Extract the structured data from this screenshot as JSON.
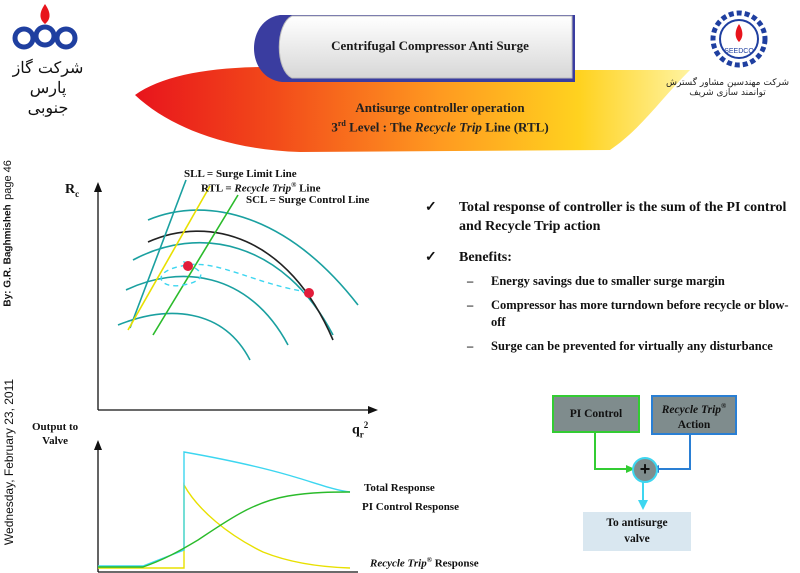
{
  "header": {
    "title": "Centrifugal Compressor Anti Surge",
    "subtitle_line1": "Antisurge controller operation",
    "subtitle_line2_prefix": "3",
    "subtitle_line2_sup": "rd",
    "subtitle_line2_mid": " Level : The ",
    "subtitle_line2_italic": "Recycle Trip",
    "subtitle_line2_suffix": " Line (RTL)"
  },
  "logo_left": {
    "line1": "شرکت گاز پارس",
    "line2": "جنوبی"
  },
  "logo_right": {
    "text": "شرکت مهندسین مشاور گسترش توانمند سازی شریف",
    "seal": "SEEDCO"
  },
  "sidebar": {
    "page": "page 46",
    "author": "By: G.R. Baghmisheh",
    "date": "Wednesday, February 23, 2011"
  },
  "map_chart": {
    "yaxis_label": "R",
    "yaxis_sub": "c",
    "xaxis_label": "q",
    "xaxis_sub": "r",
    "xaxis_sup": "2",
    "legend_sll": "SLL = Surge Limit Line",
    "legend_rtl_prefix": "RTL = ",
    "legend_rtl_italic": "Recycle Trip",
    "legend_rtl_sup": "®",
    "legend_rtl_suffix": " Line",
    "legend_scl": "SCL = Surge Control Line"
  },
  "response_chart": {
    "ylabel_line1": "Output to",
    "ylabel_line2": "Valve",
    "total_label": "Total Response",
    "pi_label": "PI Control Response",
    "rt_label_italic": "Recycle Trip",
    "rt_label_sup": "®",
    "rt_label_suffix": " Response"
  },
  "bullets": {
    "total": "Total response of controller is the sum of the PI control and Recycle Trip action",
    "benefits": "Benefits:",
    "items": [
      "Energy savings due to smaller surge margin",
      "Compressor has more turndown before recycle or blow-off",
      "Surge can be prevented for virtually any disturbance"
    ],
    "check_glyph": "✓",
    "dash_glyph": "–"
  },
  "block_diagram": {
    "pi_box": "PI Control",
    "rt_line1_italic": "Recycle Trip",
    "rt_line1_sup": "®",
    "rt_line2": "Action",
    "plus": "+",
    "out_line1": "To antisurge",
    "out_line2": "valve"
  },
  "colors": {
    "swoosh_red": "#e8141c",
    "swoosh_yellow": "#ffd21f",
    "tab_blue": "#3a3da0",
    "teal_curve": "#1aa0a0",
    "sll_yellow": "#e8e000",
    "rtl_green": "#2bbb2b",
    "scl_dark": "#222222",
    "cyan": "#3dd6f0",
    "op_red": "#e21c3a",
    "box_fill": "#7f8c8d",
    "box_green": "#33cc33",
    "box_blue": "#2a7fd4",
    "out_box": "#d9e7f0"
  }
}
